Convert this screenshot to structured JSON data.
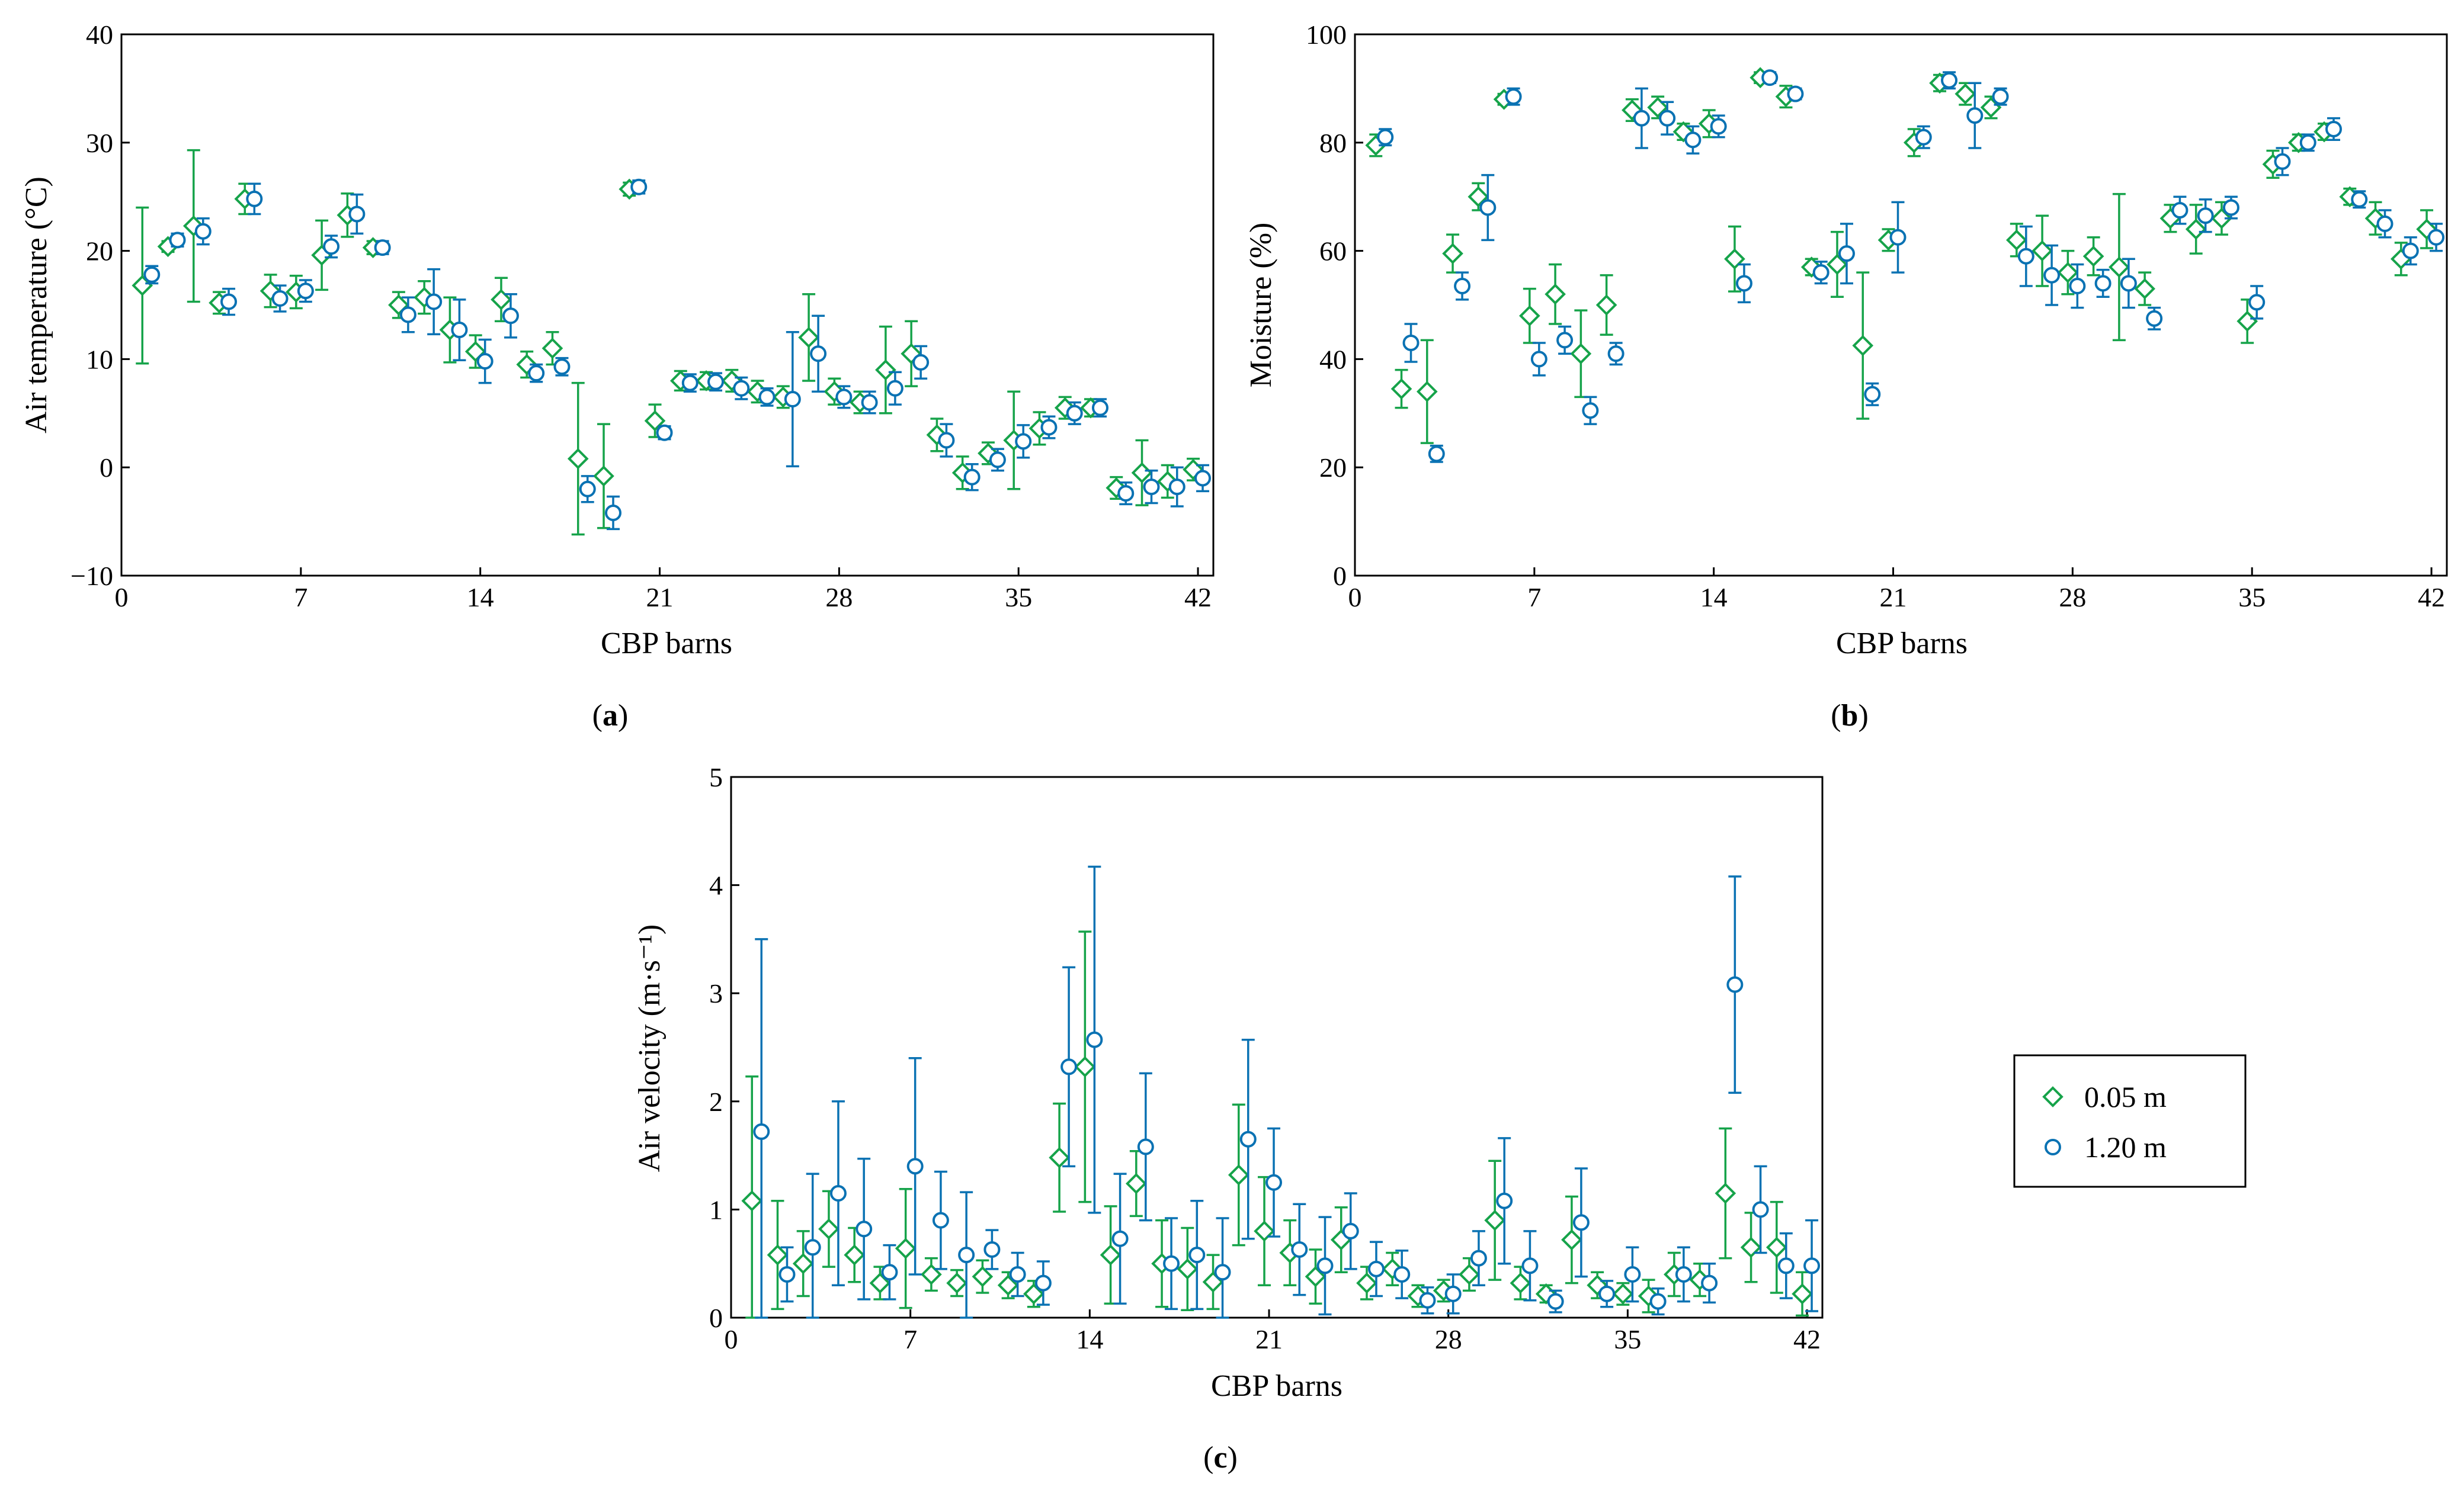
{
  "colors": {
    "green": "#16a34a",
    "blue": "#0a72b3"
  },
  "legend": {
    "items": [
      {
        "label": "0.05 m",
        "marker": "diamond",
        "color": "#16a34a"
      },
      {
        "label": "1.20 m",
        "marker": "circle",
        "color": "#0a72b3"
      }
    ]
  },
  "chart_data": [
    {
      "panel": "a",
      "type": "scatter",
      "error_bars": true,
      "xlabel": "CBP barns",
      "ylabel": "Air temperature (°C)",
      "xlim": [
        0,
        42.6
      ],
      "ylim": [
        -10,
        40
      ],
      "xticks": [
        0,
        7,
        14,
        21,
        28,
        35,
        42
      ],
      "yticks": [
        -10,
        0,
        10,
        20,
        30,
        40
      ],
      "panel_label": "(a)",
      "series": [
        {
          "name": "0.05 m",
          "marker": "diamond",
          "color": "#16a34a",
          "x": [
            1,
            2,
            3,
            4,
            5,
            6,
            7,
            8,
            9,
            10,
            11,
            12,
            13,
            14,
            15,
            16,
            17,
            18,
            19,
            20,
            21,
            22,
            23,
            24,
            25,
            26,
            27,
            28,
            29,
            30,
            31,
            32,
            33,
            34,
            35,
            36,
            37,
            38,
            39,
            40,
            41,
            42
          ],
          "y": [
            16.8,
            20.4,
            22.3,
            15.2,
            24.8,
            16.3,
            16.2,
            19.6,
            23.3,
            20.3,
            15.0,
            15.7,
            12.7,
            10.7,
            15.5,
            9.5,
            11.0,
            0.8,
            -0.8,
            25.7,
            4.3,
            8.0,
            8.0,
            8.0,
            7.0,
            6.5,
            12.0,
            7.0,
            6.0,
            9.0,
            10.5,
            3.0,
            -0.5,
            1.3,
            2.5,
            3.6,
            5.5,
            5.5,
            -1.9,
            -0.5,
            -1.3,
            -0.2
          ],
          "yerr": [
            7.2,
            0.5,
            7.0,
            1.0,
            1.4,
            1.5,
            1.5,
            3.2,
            2.0,
            0.6,
            1.2,
            1.5,
            3.0,
            1.5,
            2.0,
            1.2,
            1.5,
            7.0,
            4.8,
            0.6,
            1.5,
            0.9,
            0.8,
            1.0,
            1.0,
            1.0,
            4.0,
            1.2,
            1.0,
            4.0,
            3.0,
            1.5,
            1.5,
            1.0,
            4.5,
            1.5,
            1.0,
            0.8,
            1.0,
            3.0,
            1.5,
            1.0
          ]
        },
        {
          "name": "1.20 m",
          "marker": "circle",
          "color": "#0a72b3",
          "x": [
            1,
            2,
            3,
            4,
            5,
            6,
            7,
            8,
            9,
            10,
            11,
            12,
            13,
            14,
            15,
            16,
            17,
            18,
            19,
            20,
            21,
            22,
            23,
            24,
            25,
            26,
            27,
            28,
            29,
            30,
            31,
            32,
            33,
            34,
            35,
            36,
            37,
            38,
            39,
            40,
            41,
            42
          ],
          "y": [
            17.8,
            21.0,
            21.8,
            15.3,
            24.8,
            15.6,
            16.3,
            20.4,
            23.4,
            20.3,
            14.1,
            15.3,
            12.7,
            9.8,
            14.0,
            8.7,
            9.3,
            -2.0,
            -4.2,
            25.9,
            3.2,
            7.8,
            7.9,
            7.3,
            6.5,
            6.3,
            10.5,
            6.5,
            6.0,
            7.3,
            9.7,
            2.5,
            -0.9,
            0.7,
            2.4,
            3.7,
            5.0,
            5.5,
            -2.4,
            -1.8,
            -1.8,
            -1.0
          ],
          "yerr": [
            0.8,
            0.6,
            1.2,
            1.2,
            1.4,
            1.2,
            1.0,
            1.0,
            1.8,
            0.6,
            1.6,
            3.0,
            2.8,
            2.0,
            2.0,
            0.8,
            0.8,
            1.2,
            1.5,
            0.6,
            0.6,
            0.8,
            0.8,
            1.0,
            0.8,
            6.2,
            3.5,
            1.0,
            1.0,
            1.5,
            1.5,
            1.5,
            1.2,
            1.0,
            1.5,
            1.0,
            1.0,
            0.8,
            1.0,
            1.5,
            1.8,
            1.2
          ]
        }
      ]
    },
    {
      "panel": "b",
      "type": "scatter",
      "error_bars": true,
      "xlabel": "CBP barns",
      "ylabel": "Moisture (%)",
      "xlim": [
        0,
        42.6
      ],
      "ylim": [
        0,
        100
      ],
      "xticks": [
        0,
        7,
        14,
        21,
        28,
        35,
        42
      ],
      "yticks": [
        0,
        20,
        40,
        60,
        80,
        100
      ],
      "panel_label": "(b)",
      "series": [
        {
          "name": "0.05 m",
          "marker": "diamond",
          "color": "#16a34a",
          "x": [
            1,
            2,
            3,
            4,
            5,
            6,
            7,
            8,
            9,
            10,
            11,
            12,
            13,
            14,
            15,
            16,
            17,
            18,
            19,
            20,
            21,
            22,
            23,
            24,
            25,
            26,
            27,
            28,
            29,
            30,
            31,
            32,
            33,
            34,
            35,
            36,
            37,
            38,
            39,
            40,
            41,
            42
          ],
          "y": [
            79.5,
            34.5,
            34.0,
            59.5,
            70.0,
            88.0,
            48.0,
            52.0,
            41.0,
            50.0,
            86.0,
            86.5,
            82.0,
            83.5,
            58.5,
            92.0,
            88.5,
            57.0,
            57.5,
            42.5,
            62.0,
            80.0,
            91.0,
            89.0,
            86.5,
            62.0,
            60.0,
            56.0,
            59.0,
            57.0,
            53.0,
            66.0,
            64.0,
            66.0,
            47.0,
            76.0,
            80.0,
            82.0,
            70.0,
            66.0,
            58.5,
            64.0
          ]
        },
        {
          "name": "1.20 m",
          "marker": "circle",
          "color": "#0a72b3",
          "x": [
            1,
            2,
            3,
            4,
            5,
            6,
            7,
            8,
            9,
            10,
            11,
            12,
            13,
            14,
            15,
            16,
            17,
            18,
            19,
            20,
            21,
            22,
            23,
            24,
            25,
            26,
            27,
            28,
            29,
            30,
            31,
            32,
            33,
            34,
            35,
            36,
            37,
            38,
            39,
            40,
            41,
            42
          ],
          "y": [
            81.0,
            43.0,
            22.5,
            53.5,
            68.0,
            88.5,
            40.0,
            43.5,
            30.5,
            41.0,
            84.5,
            84.5,
            80.5,
            83.0,
            54.0,
            92.0,
            89.0,
            56.0,
            59.5,
            33.5,
            62.5,
            81.0,
            91.5,
            85.0,
            88.5,
            59.0,
            55.5,
            53.5,
            54.0,
            54.0,
            47.5,
            67.5,
            66.5,
            68.0,
            50.5,
            76.5,
            80.0,
            82.5,
            69.5,
            65.0,
            60.0,
            62.5
          ]
        }
      ]
    },
    {
      "panel": "c",
      "type": "scatter",
      "error_bars": true,
      "xlabel": "CBP barns",
      "ylabel": "Air velocity (m·s⁻¹)",
      "xlim": [
        0,
        42.6
      ],
      "ylim": [
        0,
        5
      ],
      "xticks": [
        0,
        7,
        14,
        21,
        28,
        35,
        42
      ],
      "yticks": [
        0,
        1,
        2,
        3,
        4,
        5
      ],
      "panel_label": "(c)",
      "series": [
        {
          "name": "0.05 m",
          "marker": "diamond",
          "color": "#16a34a",
          "x": [
            1,
            2,
            3,
            4,
            5,
            6,
            7,
            8,
            9,
            10,
            11,
            12,
            13,
            14,
            15,
            16,
            17,
            18,
            19,
            20,
            21,
            22,
            23,
            24,
            25,
            26,
            27,
            28,
            29,
            30,
            31,
            32,
            33,
            34,
            35,
            36,
            37,
            38,
            39,
            40,
            41,
            42
          ],
          "y": [
            1.08,
            0.58,
            0.5,
            0.82,
            0.58,
            0.32,
            0.64,
            0.4,
            0.32,
            0.38,
            0.3,
            0.22,
            1.48,
            2.32,
            0.58,
            1.24,
            0.5,
            0.45,
            0.33,
            1.32,
            0.8,
            0.6,
            0.38,
            0.72,
            0.32,
            0.45,
            0.2,
            0.25,
            0.4,
            0.9,
            0.32,
            0.22,
            0.72,
            0.3,
            0.22,
            0.2,
            0.4,
            0.35,
            1.15,
            0.65,
            0.65,
            0.22
          ]
        },
        {
          "name": "1.20 m",
          "marker": "circle",
          "color": "#0a72b3",
          "x": [
            1,
            2,
            3,
            4,
            5,
            6,
            7,
            8,
            9,
            10,
            11,
            12,
            13,
            14,
            15,
            16,
            17,
            18,
            19,
            20,
            21,
            22,
            23,
            24,
            25,
            26,
            27,
            28,
            29,
            30,
            31,
            32,
            33,
            34,
            35,
            36,
            37,
            38,
            39,
            40,
            41,
            42
          ],
          "y": [
            1.72,
            0.4,
            0.65,
            1.15,
            0.82,
            0.42,
            1.4,
            0.9,
            0.58,
            0.63,
            0.4,
            0.32,
            2.32,
            2.57,
            0.73,
            1.58,
            0.5,
            0.58,
            0.42,
            1.65,
            1.25,
            0.63,
            0.48,
            0.8,
            0.45,
            0.4,
            0.16,
            0.22,
            0.55,
            1.08,
            0.48,
            0.15,
            0.88,
            0.22,
            0.4,
            0.15,
            0.4,
            0.32,
            3.08,
            1.0,
            0.48,
            0.48
          ]
        }
      ]
    }
  ]
}
